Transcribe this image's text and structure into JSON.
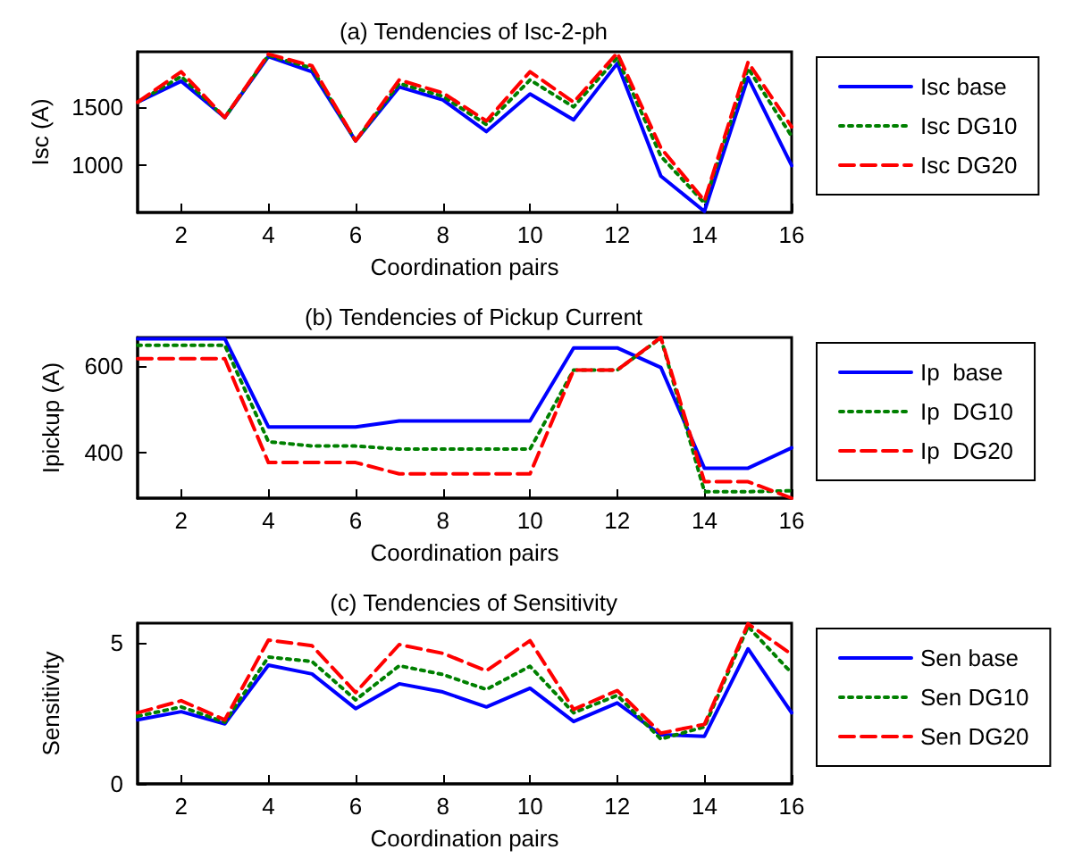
{
  "chart_data": [
    {
      "type": "line",
      "title": "(a) Tendencies of Isc-2-ph",
      "xlabel": "Coordination pairs",
      "ylabel": "Isc (A)",
      "x": [
        1,
        2,
        3,
        4,
        5,
        6,
        7,
        8,
        9,
        10,
        11,
        12,
        13,
        14,
        15,
        16
      ],
      "xlim": [
        1,
        16
      ],
      "xticks": [
        2,
        4,
        6,
        8,
        10,
        12,
        14,
        16
      ],
      "ylim": [
        600,
        1970
      ],
      "yticks": [
        1000,
        1500
      ],
      "grid": false,
      "legend": "right",
      "marker": "none",
      "series": [
        {
          "name": "Isc base",
          "color": "#0000ff",
          "line_style": "solid",
          "values": [
            1540,
            1720,
            1410,
            1930,
            1800,
            1210,
            1670,
            1560,
            1290,
            1610,
            1390,
            1870,
            910,
            610,
            1750,
            1000
          ]
        },
        {
          "name": "Isc DG10",
          "color": "#008000",
          "line_style": "dotted",
          "values": [
            1540,
            1760,
            1410,
            1940,
            1830,
            1210,
            1700,
            1590,
            1350,
            1730,
            1500,
            1920,
            1080,
            680,
            1830,
            1250
          ]
        },
        {
          "name": "Isc DG20",
          "color": "#ff0000",
          "line_style": "dashed",
          "values": [
            1540,
            1800,
            1410,
            1950,
            1850,
            1210,
            1730,
            1620,
            1380,
            1800,
            1540,
            1960,
            1150,
            700,
            1880,
            1330
          ]
        }
      ]
    },
    {
      "type": "line",
      "title": "(b) Tendencies of Pickup Current",
      "xlabel": "Coordination pairs",
      "ylabel": "Ipickup (A)",
      "x": [
        1,
        2,
        3,
        4,
        5,
        6,
        7,
        8,
        9,
        10,
        11,
        12,
        13,
        14,
        15,
        16
      ],
      "xlim": [
        1,
        16
      ],
      "xticks": [
        2,
        4,
        6,
        8,
        10,
        12,
        14,
        16
      ],
      "ylim": [
        295,
        665
      ],
      "yticks": [
        400,
        600
      ],
      "grid": false,
      "legend": "right",
      "marker": "none",
      "series": [
        {
          "name": "Ip  base",
          "color": "#0000ff",
          "line_style": "solid",
          "values": [
            662,
            662,
            662,
            459,
            459,
            459,
            473,
            473,
            473,
            473,
            641,
            641,
            596,
            364,
            364,
            411
          ]
        },
        {
          "name": "Ip  DG10",
          "color": "#008000",
          "line_style": "dotted",
          "values": [
            647,
            647,
            647,
            425,
            415,
            415,
            408,
            408,
            408,
            408,
            590,
            590,
            664,
            310,
            310,
            312
          ]
        },
        {
          "name": "Ip  DG20",
          "color": "#ff0000",
          "line_style": "dashed",
          "values": [
            616,
            616,
            616,
            377,
            377,
            377,
            351,
            351,
            351,
            351,
            590,
            590,
            665,
            333,
            333,
            295
          ]
        }
      ]
    },
    {
      "type": "line",
      "title": "(c) Tendencies of Sensitivity",
      "xlabel": "Coordination pairs",
      "ylabel": "Sensitivity",
      "x": [
        1,
        2,
        3,
        4,
        5,
        6,
        7,
        8,
        9,
        10,
        11,
        12,
        13,
        14,
        15,
        16
      ],
      "xlim": [
        1,
        16
      ],
      "xticks": [
        2,
        4,
        6,
        8,
        10,
        12,
        14,
        16
      ],
      "ylim": [
        0,
        5.7
      ],
      "yticks": [
        0,
        5
      ],
      "grid": false,
      "legend": "right",
      "marker": "none",
      "series": [
        {
          "name": "Sen base",
          "color": "#0000ff",
          "line_style": "solid",
          "values": [
            2.27,
            2.56,
            2.13,
            4.21,
            3.9,
            2.67,
            3.55,
            3.26,
            2.73,
            3.39,
            2.21,
            2.87,
            1.74,
            1.69,
            4.79,
            2.52
          ]
        },
        {
          "name": "Sen DG10",
          "color": "#008000",
          "line_style": "dotted",
          "values": [
            2.4,
            2.73,
            2.19,
            4.5,
            4.34,
            2.98,
            4.19,
            3.88,
            3.35,
            4.17,
            2.52,
            3.14,
            1.59,
            2.02,
            5.58,
            3.93
          ]
        },
        {
          "name": "Sen DG20",
          "color": "#ff0000",
          "line_style": "dashed",
          "values": [
            2.52,
            2.95,
            2.27,
            5.1,
            4.9,
            3.24,
            4.94,
            4.63,
            4.01,
            5.08,
            2.64,
            3.31,
            1.8,
            2.11,
            5.68,
            4.59
          ]
        }
      ]
    }
  ]
}
